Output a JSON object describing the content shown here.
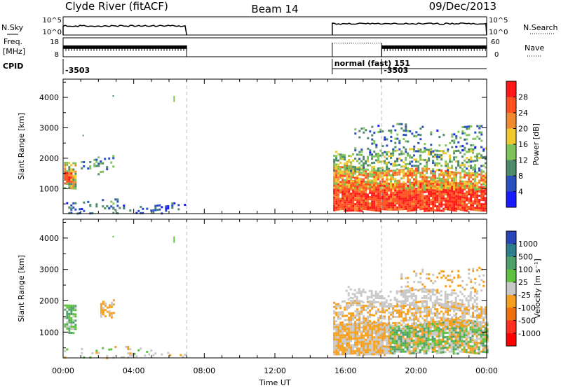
{
  "header": {
    "station": "Clyde River (fitACF)",
    "beam": "Beam 14",
    "date": "09/Dec/2013"
  },
  "strips": {
    "nsky": {
      "label": "N.Sky",
      "right_label": "N.Search",
      "yticks": [
        "10^5",
        "10^0"
      ],
      "right_yticks": [
        "10^5",
        "10^0"
      ],
      "segments": [
        {
          "t0": 0.0,
          "t1": 7.0,
          "level": 0.5
        },
        {
          "t0": 15.25,
          "t1": 24.0,
          "level": 0.62
        }
      ]
    },
    "freq": {
      "label_line1": "Freq.",
      "label_line2": "[MHz]",
      "right_label": "Nave",
      "yticks": [
        "18",
        "8"
      ],
      "right_yticks": [
        "60",
        "0"
      ],
      "segments": [
        {
          "t0": 0.0,
          "t1": 7.0,
          "level": 0.6,
          "dense": true
        },
        {
          "t0": 15.25,
          "t1": 18.05,
          "level": 0.72,
          "dense": false
        },
        {
          "t0": 18.05,
          "t1": 24.0,
          "level": 0.6,
          "dense": true
        }
      ]
    },
    "cpid": {
      "label": "CPID",
      "entries": [
        {
          "t": 0.0,
          "text": "-3503"
        },
        {
          "t": 15.25,
          "text": "normal (fast) 151"
        },
        {
          "t": 18.05,
          "text": "-3503"
        }
      ]
    }
  },
  "time_axis": {
    "label": "Time UT",
    "start_hour": 0,
    "end_hour": 24,
    "tick_labels": [
      "00:00",
      "04:00",
      "08:00",
      "12:00",
      "16:00",
      "20:00",
      "00:00"
    ]
  },
  "range_axis": {
    "label": "Slant Range [km]",
    "min": 180,
    "max": 4600,
    "ticks": [
      1000,
      2000,
      3000,
      4000
    ]
  },
  "chart_data": [
    {
      "type": "heatmap",
      "parameter": "Power",
      "colorbar_label": "Power [dB]",
      "colorbar_ticks": [
        "4",
        "8",
        "12",
        "16",
        "20",
        "24",
        "28"
      ],
      "colors": [
        "#1a1aff",
        "#2a4fbf",
        "#4f8a6a",
        "#7fc35a",
        "#f0c830",
        "#f08a30",
        "#ff5020",
        "#ff1818"
      ],
      "scale": [
        0,
        32
      ],
      "x_unit": "hour UT",
      "y_unit": "km",
      "blobs": [
        {
          "t0": 0.05,
          "t1": 0.7,
          "r0": 1000,
          "r1": 1900,
          "value": 16,
          "spread": 8,
          "density": 0.75
        },
        {
          "t0": 0.05,
          "t1": 0.5,
          "r0": 1200,
          "r1": 1500,
          "value": 27,
          "spread": 4,
          "density": 0.9
        },
        {
          "t0": 1.0,
          "t1": 2.9,
          "r0": 1500,
          "r1": 2050,
          "value": 11,
          "spread": 5,
          "density": 0.3
        },
        {
          "t0": 0.05,
          "t1": 3.4,
          "r0": 280,
          "r1": 700,
          "value": 8,
          "spread": 5,
          "density": 0.12
        },
        {
          "t0": 0.05,
          "t1": 6.9,
          "r0": 200,
          "r1": 420,
          "value": 7,
          "spread": 4,
          "density": 0.18
        },
        {
          "t0": 15.3,
          "t1": 24.0,
          "r0": 300,
          "r1": 1150,
          "value": 27,
          "spread": 4,
          "density": 0.95
        },
        {
          "t0": 15.3,
          "t1": 24.0,
          "r0": 1000,
          "r1": 1700,
          "value": 20,
          "spread": 7,
          "density": 0.8
        },
        {
          "t0": 15.3,
          "t1": 24.0,
          "r0": 1600,
          "r1": 2300,
          "value": 13,
          "spread": 6,
          "density": 0.45
        },
        {
          "t0": 16.5,
          "t1": 23.8,
          "r0": 2200,
          "r1": 3000,
          "value": 9,
          "spread": 6,
          "density": 0.18
        }
      ],
      "specks": [
        {
          "t": 6.25,
          "r0": 3850,
          "r1": 4050,
          "value": 12
        },
        {
          "t": 2.8,
          "r0": 4020,
          "r1": 4070,
          "value": 8
        },
        {
          "t": 1.1,
          "r0": 2730,
          "r1": 2770,
          "value": 8
        }
      ]
    },
    {
      "type": "heatmap",
      "parameter": "Velocity",
      "colorbar_label": "Velocity [m s⁻¹]",
      "colorbar_ticks": [
        "1000",
        "500",
        "100",
        "25",
        "-25",
        "-100",
        "-500",
        "-1000"
      ],
      "colors": [
        "#2a45b8",
        "#2f7f8a",
        "#4fa06a",
        "#60c040",
        "#c8c8c8",
        "#f5a020",
        "#f07010",
        "#ff3020",
        "#ff0000"
      ],
      "scale": [
        -1200,
        1200
      ],
      "x_unit": "hour UT",
      "y_unit": "km",
      "blobs": [
        {
          "t0": 0.05,
          "t1": 0.7,
          "r0": 1000,
          "r1": 1900,
          "value": 300,
          "spread": 250,
          "density": 0.7
        },
        {
          "t0": 2.1,
          "t1": 2.9,
          "r0": 1500,
          "r1": 2000,
          "value": -180,
          "spread": 80,
          "density": 0.5
        },
        {
          "t0": 0.05,
          "t1": 6.9,
          "r0": 200,
          "r1": 500,
          "value": 50,
          "spread": 300,
          "density": 0.15
        },
        {
          "t0": 15.3,
          "t1": 18.5,
          "r0": 300,
          "r1": 1300,
          "value": -150,
          "spread": 120,
          "density": 0.95
        },
        {
          "t0": 18.5,
          "t1": 24.0,
          "r0": 350,
          "r1": 1300,
          "value": 120,
          "spread": 500,
          "density": 0.9
        },
        {
          "t0": 15.3,
          "t1": 24.0,
          "r0": 1200,
          "r1": 1900,
          "value": -140,
          "spread": 150,
          "density": 0.6
        },
        {
          "t0": 16.0,
          "t1": 23.5,
          "r0": 1800,
          "r1": 2400,
          "value": 0,
          "spread": 60,
          "density": 0.45
        },
        {
          "t0": 19.0,
          "t1": 23.8,
          "r0": 2300,
          "r1": 3000,
          "value": -120,
          "spread": 150,
          "density": 0.2
        }
      ],
      "specks": [
        {
          "t": 6.25,
          "r0": 3850,
          "r1": 4050,
          "value": 300
        },
        {
          "t": 2.8,
          "r0": 4020,
          "r1": 4070,
          "value": 300
        }
      ]
    }
  ]
}
